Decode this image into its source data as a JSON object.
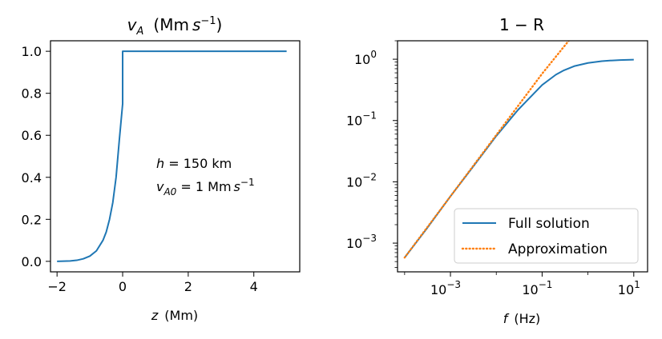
{
  "chart_data": [
    {
      "type": "line",
      "title": "v_A (Mm s^-1)",
      "title_parts": {
        "main": "v",
        "sub": "A",
        "units_pre": "(Mm",
        "units_s": "s",
        "units_exp": "−1",
        "units_post": ")"
      },
      "xlabel": "z  (Mm)",
      "xlabel_parts": {
        "var": "z",
        "unit": "(Mm)"
      },
      "xlim": [
        -2.2,
        5.4
      ],
      "ylim": [
        -0.05,
        1.05
      ],
      "xticks": [
        -2,
        0,
        2,
        4
      ],
      "xtick_labels": [
        "−2",
        "0",
        "2",
        "4"
      ],
      "yticks": [
        0.0,
        0.2,
        0.4,
        0.6,
        0.8,
        1.0
      ],
      "ytick_labels": [
        "0.0",
        "0.2",
        "0.4",
        "0.6",
        "0.8",
        "1.0"
      ],
      "grid": false,
      "series": [
        {
          "color": "#1f77b4",
          "x": [
            -2.0,
            -1.8,
            -1.6,
            -1.4,
            -1.2,
            -1.0,
            -0.8,
            -0.6,
            -0.5,
            -0.4,
            -0.3,
            -0.2,
            -0.1,
            0.0,
            0.0,
            1.0,
            2.0,
            3.0,
            4.0,
            5.0
          ],
          "y": [
            0.0,
            0.001,
            0.002,
            0.005,
            0.012,
            0.025,
            0.05,
            0.1,
            0.14,
            0.2,
            0.28,
            0.4,
            0.58,
            0.75,
            1.0,
            1.0,
            1.0,
            1.0,
            1.0,
            1.0
          ]
        }
      ],
      "annotations": {
        "line1": {
          "var": "h",
          "rest": " = 150 km"
        },
        "line2": {
          "var": "v",
          "sub": "A0",
          "rest_pre": " = 1 Mm",
          "s": "s",
          "exp": "−1"
        }
      }
    },
    {
      "type": "line",
      "title": "1 − R",
      "xlabel": "f  (Hz)",
      "xlabel_parts": {
        "var": "f",
        "unit": "(Hz)"
      },
      "xscale": "log",
      "yscale": "log",
      "xlim": [
        7e-05,
        20
      ],
      "ylim": [
        0.00034,
        2.0
      ],
      "xticks": [
        0.001,
        0.1,
        10
      ],
      "xtick_labels": [
        {
          "base": "10",
          "exp": "−3"
        },
        {
          "base": "10",
          "exp": "−1"
        },
        {
          "base": "10",
          "exp": "1"
        }
      ],
      "yticks": [
        0.001,
        0.01,
        0.1,
        1
      ],
      "ytick_labels": [
        {
          "base": "10",
          "exp": "−3"
        },
        {
          "base": "10",
          "exp": "−2"
        },
        {
          "base": "10",
          "exp": "−1"
        },
        {
          "base": "10",
          "exp": "0"
        }
      ],
      "grid": false,
      "legend_placement": "lower right",
      "series": [
        {
          "name": "Full solution",
          "color": "#1f77b4",
          "style": "solid",
          "x": [
            0.0001,
            0.0003,
            0.001,
            0.003,
            0.01,
            0.03,
            0.1,
            0.2,
            0.3,
            0.5,
            1,
            2,
            3,
            5,
            10
          ],
          "y": [
            0.00058,
            0.0017,
            0.0058,
            0.017,
            0.056,
            0.15,
            0.38,
            0.56,
            0.66,
            0.77,
            0.87,
            0.93,
            0.95,
            0.97,
            0.985
          ]
        },
        {
          "name": "Approximation",
          "color": "#ff7f0e",
          "style": "dotted",
          "x": [
            0.0001,
            0.001,
            0.01,
            0.1,
            0.38
          ],
          "y": [
            0.00058,
            0.0058,
            0.058,
            0.58,
            2.0
          ]
        }
      ]
    }
  ]
}
